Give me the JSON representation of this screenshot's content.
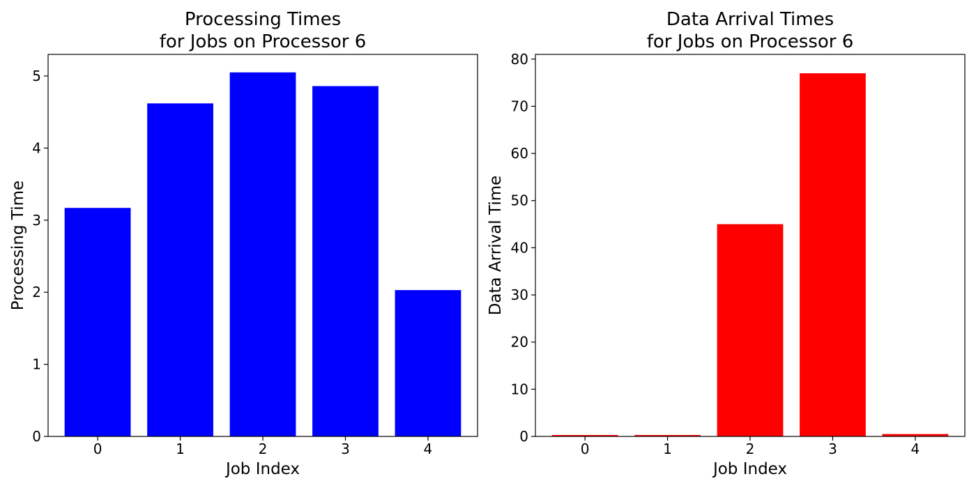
{
  "chart_data": [
    {
      "type": "bar",
      "title_lines": [
        "Processing Times",
        "for Jobs on Processor 6"
      ],
      "xlabel": "Job Index",
      "ylabel": "Processing Time",
      "categories": [
        "0",
        "1",
        "2",
        "3",
        "4"
      ],
      "values": [
        3.17,
        4.62,
        5.05,
        4.86,
        2.03
      ],
      "ylim": [
        0,
        5.3
      ],
      "yticks": [
        0,
        1,
        2,
        3,
        4,
        5
      ],
      "color": "#0000ff",
      "grid": false,
      "legend": "none"
    },
    {
      "type": "bar",
      "title_lines": [
        "Data Arrival Times",
        "for Jobs on Processor 6"
      ],
      "xlabel": "Job Index",
      "ylabel": "Data Arrival Time",
      "categories": [
        "0",
        "1",
        "2",
        "3",
        "4"
      ],
      "values": [
        0.3,
        0.3,
        45.0,
        77.0,
        0.5
      ],
      "ylim": [
        0,
        81
      ],
      "yticks": [
        0,
        10,
        20,
        30,
        40,
        50,
        60,
        70,
        80
      ],
      "color": "#ff0000",
      "grid": false,
      "legend": "none"
    }
  ]
}
